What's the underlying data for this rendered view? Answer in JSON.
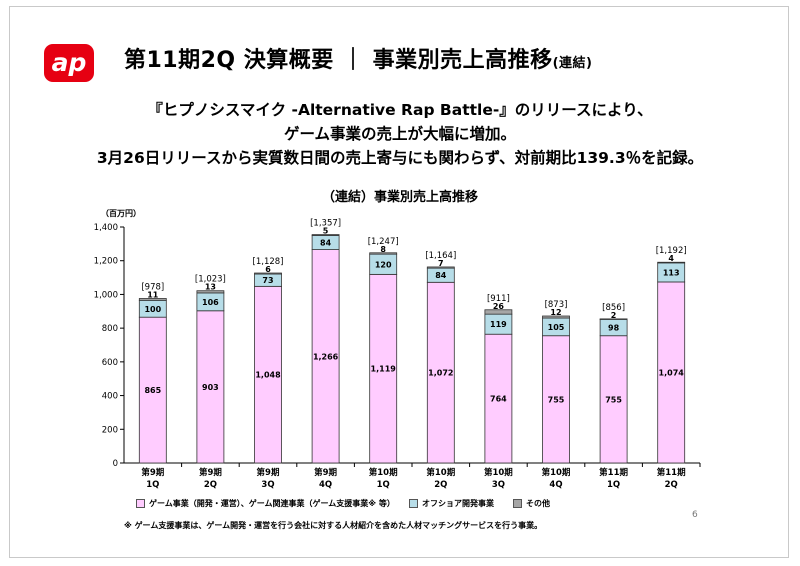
{
  "header": {
    "title": "第11期2Q 決算概要 ｜ 事業別売上高推移",
    "title_suffix": "(連結)"
  },
  "logo": {
    "text": "ap",
    "color": "#e60012"
  },
  "description": [
    "『ヒプノシスマイク -Alternative Rap Battle-』のリリースにより、",
    "ゲーム事業の売上が大幅に増加。",
    "3月26日リリースから実質数日間の売上寄与にも関わらず、対前期比139.3％を記録。"
  ],
  "chart_data": {
    "type": "bar",
    "stacked": true,
    "title": "（連結）事業別売上高推移",
    "unit_label": "（百万円）",
    "ylim": [
      0,
      1400
    ],
    "yticks": [
      "0",
      "200",
      "400",
      "600",
      "800",
      "1,000",
      "1,200",
      "1,400"
    ],
    "categories": [
      [
        "第9期",
        "1Q"
      ],
      [
        "第9期",
        "2Q"
      ],
      [
        "第9期",
        "3Q"
      ],
      [
        "第9期",
        "4Q"
      ],
      [
        "第10期",
        "1Q"
      ],
      [
        "第10期",
        "2Q"
      ],
      [
        "第10期",
        "3Q"
      ],
      [
        "第10期",
        "4Q"
      ],
      [
        "第11期",
        "1Q"
      ],
      [
        "第11期",
        "2Q"
      ]
    ],
    "series": [
      {
        "name": "ゲーム事業（開発・運営）、ゲーム関連事業（ゲーム支援事業※ 等）",
        "color": "#ffccff",
        "values": [
          865,
          903,
          1048,
          1266,
          1119,
          1072,
          764,
          755,
          755,
          1074
        ],
        "labels": [
          "865",
          "903",
          "1,048",
          "1,266",
          "1,119",
          "1,072",
          "764",
          "755",
          "755",
          "1,074"
        ]
      },
      {
        "name": "オフショア開発事業",
        "color": "#b7dde8",
        "values": [
          100,
          106,
          73,
          84,
          120,
          84,
          119,
          105,
          98,
          113
        ],
        "labels": [
          "100",
          "106",
          "73",
          "84",
          "120",
          "84",
          "119",
          "105",
          "98",
          "113"
        ]
      },
      {
        "name": "その他",
        "color": "#a6a6a6",
        "values": [
          11,
          13,
          6,
          5,
          8,
          7,
          26,
          12,
          2,
          4
        ],
        "labels": [
          "11",
          "13",
          "6",
          "5",
          "8",
          "7",
          "26",
          "12",
          "2",
          "4"
        ]
      }
    ],
    "totals": [
      978,
      1023,
      1128,
      1357,
      1247,
      1164,
      911,
      873,
      856,
      1192
    ],
    "total_labels": [
      "[978]",
      "[1,023]",
      "[1,128]",
      "[1,357]",
      "[1,247]",
      "[1,164]",
      "[911]",
      "[873]",
      "[856]",
      "[1,192]"
    ],
    "grid": false,
    "legend_position": "bottom"
  },
  "footnote": "※ ゲーム支援事業は、ゲーム開発・運営を行う会社に対する人材紹介を含めた人材マッチングサービスを行う事業。",
  "page_number": "6"
}
